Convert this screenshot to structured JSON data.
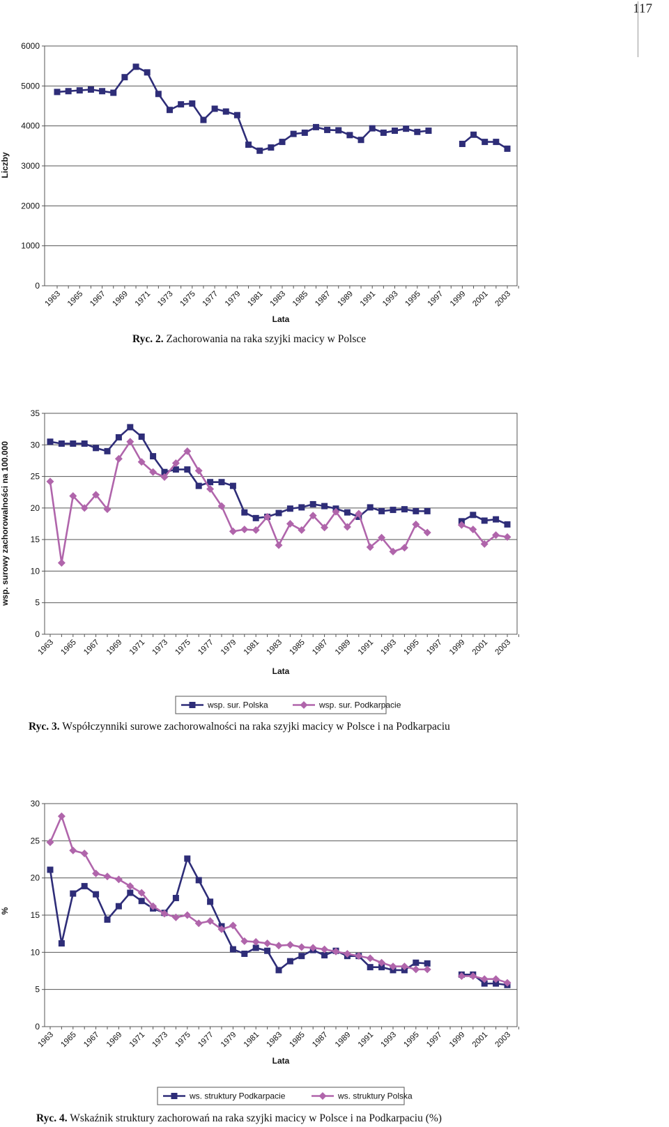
{
  "page": {
    "number": "117"
  },
  "chart_data": [
    {
      "type": "line",
      "ylabel": "Liczby",
      "xlabel": "Lata",
      "ylim": [
        0,
        6000
      ],
      "yticks": [
        0,
        1000,
        2000,
        3000,
        4000,
        5000,
        6000
      ],
      "x": [
        1963,
        1964,
        1965,
        1966,
        1967,
        1968,
        1969,
        1970,
        1971,
        1972,
        1973,
        1974,
        1975,
        1976,
        1977,
        1978,
        1979,
        1980,
        1981,
        1982,
        1983,
        1984,
        1985,
        1986,
        1987,
        1988,
        1989,
        1990,
        1991,
        1992,
        1993,
        1994,
        1995,
        1996,
        1997,
        1998,
        1999,
        2000,
        2001,
        2002,
        2003,
        2004
      ],
      "xtick_labels": [
        "1963",
        "1965",
        "1967",
        "1969",
        "1971",
        "1973",
        "1975",
        "1977",
        "1979",
        "1981",
        "1983",
        "1985",
        "1987",
        "1989",
        "1991",
        "1993",
        "1995",
        "1997",
        "1999",
        "2001",
        "2003"
      ],
      "grid": true,
      "legend": "none",
      "series": [
        {
          "color": "#2e2d78",
          "marker": "square",
          "values": [
            4850,
            4870,
            4890,
            4910,
            4870,
            4830,
            5220,
            5480,
            5340,
            4800,
            4400,
            4540,
            4560,
            4150,
            4430,
            4360,
            4270,
            3530,
            3380,
            3460,
            3600,
            3800,
            3830,
            3970,
            3900,
            3890,
            3770,
            3650,
            3940,
            3830,
            3880,
            3930,
            3850,
            3880,
            null,
            null,
            3550,
            3780,
            3600,
            3600,
            3430,
            null
          ]
        }
      ]
    },
    {
      "type": "line",
      "ylabel": "wsp. surowy zachorowalności na 100.000",
      "xlabel": "Lata",
      "ylim": [
        0,
        35
      ],
      "yticks": [
        0,
        5,
        10,
        15,
        20,
        25,
        30,
        35
      ],
      "x": [
        1963,
        1964,
        1965,
        1966,
        1967,
        1968,
        1969,
        1970,
        1971,
        1972,
        1973,
        1974,
        1975,
        1976,
        1977,
        1978,
        1979,
        1980,
        1981,
        1982,
        1983,
        1984,
        1985,
        1986,
        1987,
        1988,
        1989,
        1990,
        1991,
        1992,
        1993,
        1994,
        1995,
        1996,
        1997,
        1998,
        1999,
        2000,
        2001,
        2002,
        2003,
        2004
      ],
      "xtick_labels": [
        "1963",
        "1965",
        "1967",
        "1969",
        "1971",
        "1973",
        "1975",
        "1977",
        "1979",
        "1981",
        "1983",
        "1985",
        "1987",
        "1989",
        "1991",
        "1993",
        "1995",
        "1997",
        "1999",
        "2001",
        "2003"
      ],
      "grid": true,
      "legend": "bottom",
      "series": [
        {
          "name": "wsp. sur. Polska",
          "color": "#2e2d78",
          "marker": "square",
          "values": [
            30.5,
            30.2,
            30.2,
            30.2,
            29.5,
            29.0,
            31.2,
            32.8,
            31.3,
            28.2,
            25.7,
            26.1,
            26.1,
            23.5,
            24.1,
            24.1,
            23.5,
            19.3,
            18.4,
            18.6,
            19.2,
            19.9,
            20.1,
            20.6,
            20.3,
            19.9,
            19.3,
            18.6,
            20.1,
            19.5,
            19.7,
            19.8,
            19.5,
            19.5,
            null,
            null,
            17.9,
            18.9,
            18.0,
            18.2,
            17.4,
            null
          ]
        },
        {
          "name": "wsp. sur. Podkarpacie",
          "color": "#b065ab",
          "marker": "diamond",
          "values": [
            24.2,
            11.3,
            21.9,
            20.0,
            22.1,
            19.8,
            27.8,
            30.5,
            27.3,
            25.7,
            24.9,
            27.1,
            29.0,
            25.9,
            23.0,
            20.3,
            16.3,
            16.6,
            16.5,
            18.6,
            14.1,
            17.5,
            16.5,
            18.8,
            16.9,
            19.4,
            17.0,
            19.1,
            13.8,
            15.3,
            13.1,
            13.7,
            17.4,
            16.1,
            null,
            null,
            17.3,
            16.6,
            14.3,
            15.7,
            15.4,
            null
          ]
        }
      ]
    },
    {
      "type": "line",
      "ylabel": "%",
      "xlabel": "Lata",
      "ylim": [
        0,
        30
      ],
      "yticks": [
        0,
        5,
        10,
        15,
        20,
        25,
        30
      ],
      "x": [
        1963,
        1964,
        1965,
        1966,
        1967,
        1968,
        1969,
        1970,
        1971,
        1972,
        1973,
        1974,
        1975,
        1976,
        1977,
        1978,
        1979,
        1980,
        1981,
        1982,
        1983,
        1984,
        1985,
        1986,
        1987,
        1988,
        1989,
        1990,
        1991,
        1992,
        1993,
        1994,
        1995,
        1996,
        1997,
        1998,
        1999,
        2000,
        2001,
        2002,
        2003,
        2004
      ],
      "xtick_labels": [
        "1963",
        "1965",
        "1967",
        "1969",
        "1971",
        "1973",
        "1975",
        "1977",
        "1979",
        "1981",
        "1983",
        "1985",
        "1987",
        "1989",
        "1991",
        "1993",
        "1995",
        "1997",
        "1999",
        "2001",
        "2003"
      ],
      "grid": true,
      "legend": "bottom",
      "series": [
        {
          "name": "ws. struktury Podkarpacie",
          "color": "#2e2d78",
          "marker": "square",
          "values": [
            21.1,
            11.2,
            17.9,
            18.9,
            17.8,
            14.4,
            16.2,
            18.0,
            16.9,
            15.9,
            15.3,
            17.3,
            22.6,
            19.7,
            16.8,
            13.5,
            10.4,
            9.8,
            10.6,
            10.2,
            7.6,
            8.8,
            9.5,
            10.3,
            9.6,
            10.2,
            9.5,
            9.5,
            8.0,
            8.0,
            7.6,
            7.6,
            8.6,
            8.5,
            null,
            null,
            7.0,
            7.0,
            5.8,
            5.8,
            5.6,
            null
          ]
        },
        {
          "name": "ws. struktury Polska",
          "color": "#b065ab",
          "marker": "diamond",
          "values": [
            24.8,
            28.3,
            23.7,
            23.3,
            20.6,
            20.2,
            19.8,
            18.9,
            18.0,
            16.2,
            15.2,
            14.7,
            15.0,
            13.9,
            14.2,
            13.1,
            13.6,
            11.5,
            11.4,
            11.2,
            10.9,
            11.0,
            10.7,
            10.6,
            10.4,
            10.1,
            9.8,
            9.5,
            9.2,
            8.6,
            8.1,
            8.1,
            7.7,
            7.7,
            null,
            null,
            6.8,
            6.8,
            6.4,
            6.4,
            5.9,
            null
          ]
        }
      ]
    }
  ],
  "captions": [
    {
      "lead": "Ryc. 2.",
      "text": " Zachorowania na raka szyjki macicy w Polsce"
    },
    {
      "lead": "Ryc. 3.",
      "text": " Współczynniki surowe zachorowalności na raka szyjki macicy w Polsce i na Podkarpaciu"
    },
    {
      "lead": "Ryc. 4.",
      "text": " Wskaźnik struktury zachorowań na raka szyjki macicy w Polsce i na Podkarpaciu (%)"
    }
  ]
}
